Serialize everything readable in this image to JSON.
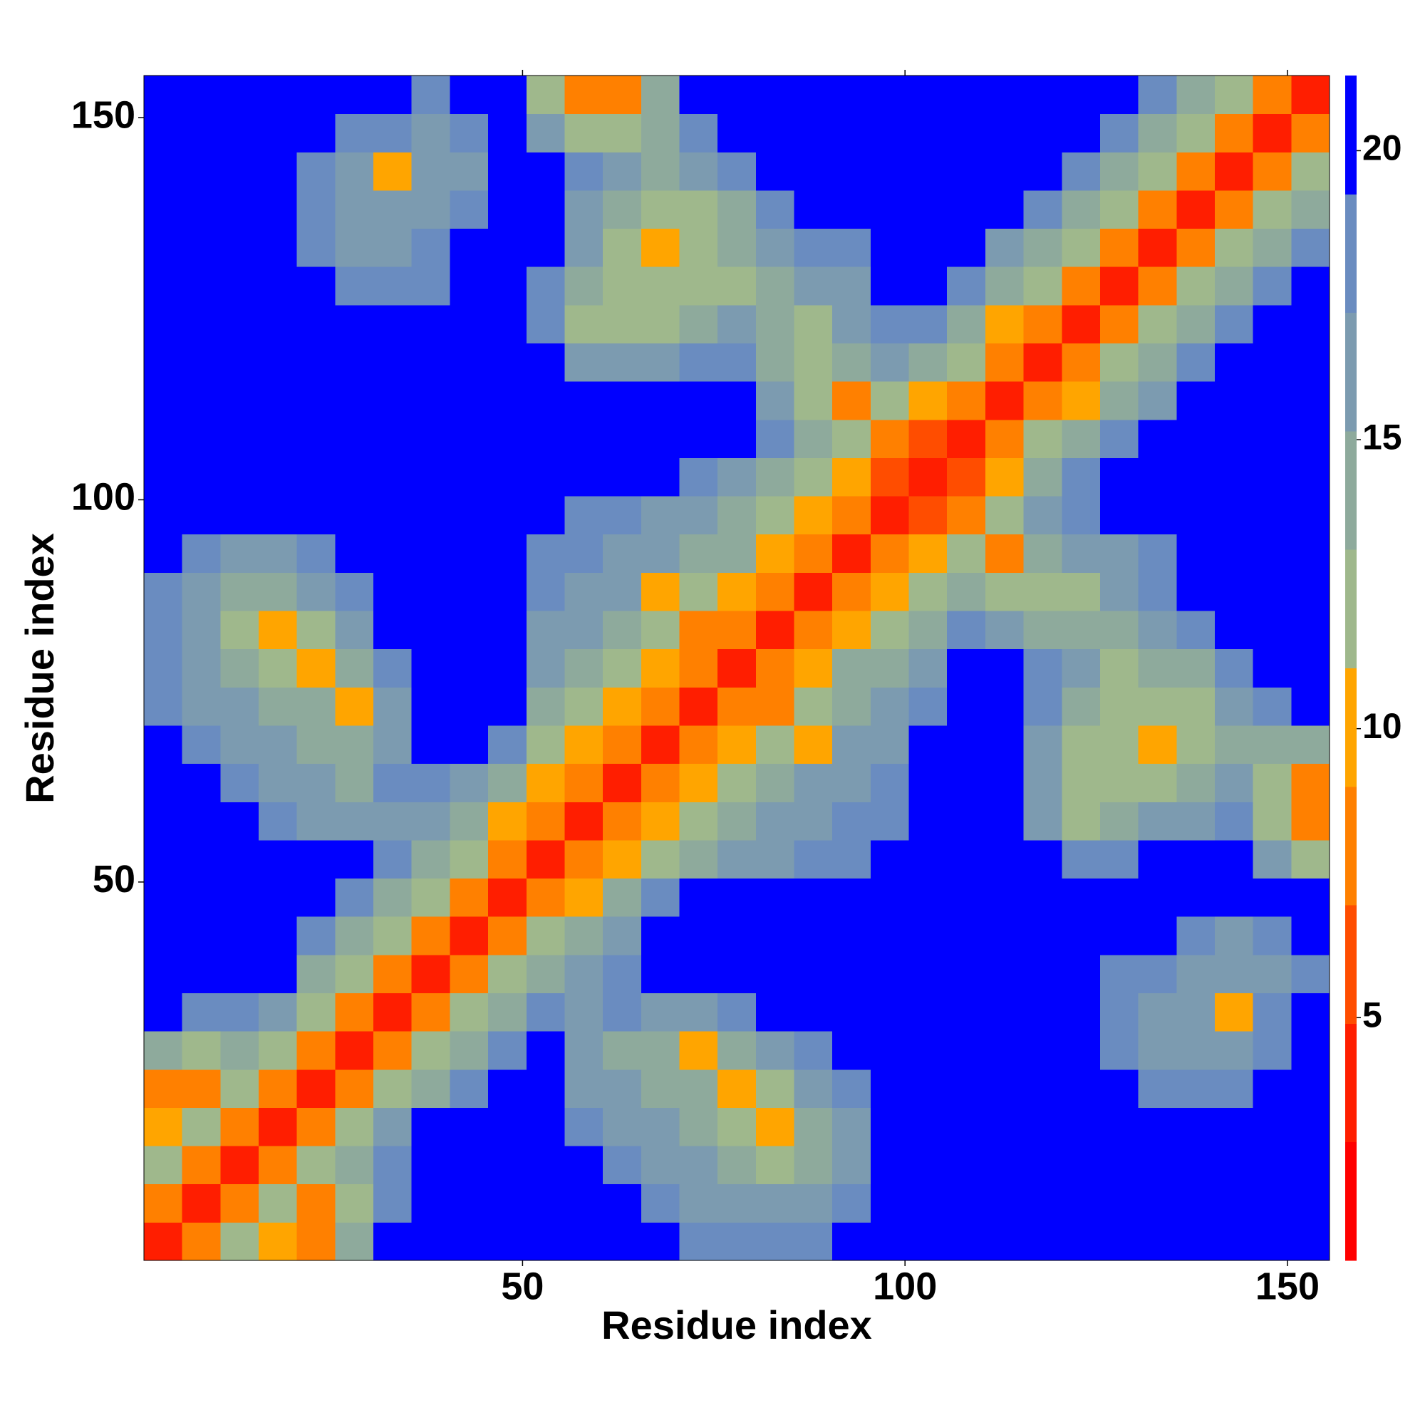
{
  "chart_data": {
    "type": "heatmap",
    "xlabel": "Residue index",
    "ylabel": "Residue index",
    "x": [
      3,
      8,
      13,
      18,
      23,
      28,
      33,
      38,
      43,
      48,
      53,
      58,
      63,
      68,
      73,
      78,
      83,
      88,
      93,
      98,
      103,
      108,
      113,
      118,
      123,
      128,
      133,
      138,
      143,
      148,
      153
    ],
    "y": [
      3,
      8,
      13,
      18,
      23,
      28,
      33,
      38,
      43,
      48,
      53,
      58,
      63,
      68,
      73,
      78,
      83,
      88,
      93,
      98,
      103,
      108,
      113,
      118,
      123,
      128,
      133,
      138,
      143,
      148,
      153
    ],
    "xlim": [
      0.5,
      155.5
    ],
    "ylim": [
      0.5,
      155.5
    ],
    "xticks": [
      50,
      100,
      150
    ],
    "yticks": [
      50,
      100,
      150
    ],
    "clim": [
      0.8,
      21.3
    ],
    "cticks": [
      5,
      10,
      15,
      20
    ],
    "colors": [
      "#ff0000",
      "#ff1e00",
      "#ff4d00",
      "#ff8000",
      "#ffa500",
      "#9fb88c",
      "#8eaa9c",
      "#7c9bb0",
      "#6a8cc0",
      "#0000ff"
    ],
    "z": [
      [
        4,
        8,
        12,
        11,
        9,
        15,
        21,
        25,
        25,
        25,
        25,
        25,
        25,
        21,
        19,
        18,
        18,
        19,
        21,
        25,
        25,
        25,
        25,
        25,
        25,
        25,
        21,
        25,
        25,
        25,
        25
      ],
      [
        8,
        4,
        8,
        12,
        7,
        13,
        18,
        25,
        25,
        25,
        25,
        25,
        22,
        19,
        17,
        16,
        16,
        17,
        19,
        25,
        25,
        25,
        25,
        25,
        25,
        25,
        21,
        21,
        25,
        25,
        25
      ],
      [
        12,
        8,
        4,
        8,
        13,
        15,
        19,
        25,
        25,
        25,
        25,
        22,
        19,
        17,
        16,
        14,
        13,
        15,
        17,
        25,
        25,
        25,
        25,
        25,
        25,
        25,
        25,
        25,
        25,
        25,
        25
      ],
      [
        11,
        12,
        8,
        4,
        8,
        12,
        16,
        21,
        25,
        25,
        25,
        19,
        17,
        16,
        15,
        12,
        10,
        14,
        17,
        21,
        25,
        25,
        25,
        25,
        25,
        25,
        25,
        25,
        25,
        25,
        25
      ],
      [
        9,
        7,
        13,
        8,
        4,
        8,
        12,
        15,
        19,
        22,
        25,
        17,
        16,
        15,
        14,
        10,
        12,
        16,
        19,
        25,
        25,
        25,
        25,
        25,
        22,
        20,
        18,
        19,
        19,
        22,
        25
      ],
      [
        15,
        13,
        15,
        12,
        8,
        4,
        8,
        12,
        15,
        18,
        21,
        17,
        15,
        14,
        11,
        14,
        16,
        18,
        22,
        25,
        25,
        25,
        25,
        23,
        20,
        18,
        17,
        17,
        17,
        19,
        25
      ],
      [
        21,
        18,
        19,
        16,
        12,
        8,
        4,
        8,
        12,
        15,
        18,
        16,
        18,
        17,
        16,
        19,
        21,
        23,
        25,
        25,
        25,
        25,
        25,
        22,
        20,
        18,
        17,
        16,
        10,
        18,
        22
      ],
      [
        25,
        25,
        25,
        21,
        15,
        12,
        8,
        4,
        8,
        12,
        15,
        17,
        18,
        20,
        22,
        25,
        25,
        25,
        25,
        25,
        25,
        25,
        25,
        23,
        21,
        19,
        18,
        17,
        16,
        17,
        19
      ],
      [
        25,
        25,
        25,
        25,
        19,
        15,
        12,
        8,
        4,
        8,
        12,
        14,
        17,
        21,
        25,
        25,
        25,
        25,
        25,
        25,
        25,
        25,
        25,
        25,
        22,
        21,
        20,
        19,
        17,
        18,
        20
      ],
      [
        25,
        25,
        25,
        25,
        22,
        18,
        15,
        12,
        8,
        4,
        8,
        11,
        15,
        19,
        23,
        25,
        25,
        25,
        25,
        25,
        25,
        25,
        25,
        25,
        25,
        25,
        24,
        23,
        21,
        22,
        25
      ],
      [
        25,
        25,
        25,
        25,
        25,
        21,
        18,
        15,
        12,
        8,
        4,
        8,
        11,
        13,
        15,
        16,
        17,
        18,
        19,
        22,
        25,
        25,
        25,
        21,
        18,
        18,
        20,
        22,
        22,
        17,
        12
      ],
      [
        25,
        25,
        22,
        19,
        17,
        17,
        16,
        17,
        14,
        11,
        8,
        4,
        8,
        11,
        13,
        15,
        16,
        17,
        18,
        19,
        25,
        25,
        22,
        17,
        13,
        14,
        16,
        17,
        18,
        13,
        8
      ],
      [
        25,
        22,
        19,
        17,
        16,
        15,
        18,
        18,
        17,
        15,
        11,
        8,
        4,
        8,
        11,
        13,
        15,
        16,
        17,
        18,
        23,
        25,
        21,
        16,
        12,
        12,
        13,
        15,
        16,
        13,
        9
      ],
      [
        21,
        19,
        17,
        16,
        15,
        14,
        17,
        20,
        21,
        19,
        13,
        11,
        8,
        4,
        8,
        11,
        13,
        11,
        16,
        17,
        21,
        24,
        21,
        17,
        13,
        13,
        11,
        12,
        15,
        15,
        15
      ],
      [
        19,
        17,
        16,
        15,
        14,
        11,
        16,
        22,
        25,
        23,
        15,
        13,
        11,
        8,
        4,
        8,
        9,
        13,
        14,
        16,
        19,
        24,
        22,
        18,
        14,
        12,
        12,
        13,
        16,
        18,
        20
      ],
      [
        18,
        16,
        14,
        12,
        10,
        14,
        19,
        25,
        25,
        25,
        16,
        15,
        13,
        11,
        8,
        4,
        8,
        11,
        14,
        15,
        17,
        23,
        22,
        19,
        16,
        13,
        14,
        15,
        18,
        22,
        25
      ],
      [
        18,
        16,
        13,
        10,
        12,
        16,
        21,
        25,
        25,
        25,
        17,
        16,
        15,
        13,
        9,
        8,
        4,
        8,
        10,
        13,
        15,
        19,
        16,
        15,
        14,
        15,
        16,
        18,
        21,
        24,
        25
      ],
      [
        19,
        17,
        15,
        14,
        16,
        18,
        23,
        25,
        25,
        25,
        18,
        17,
        16,
        11,
        13,
        11,
        8,
        4,
        8,
        11,
        13,
        15,
        12,
        13,
        13,
        16,
        18,
        20,
        22,
        25,
        25
      ],
      [
        21,
        19,
        17,
        17,
        19,
        22,
        25,
        25,
        25,
        25,
        19,
        18,
        17,
        16,
        14,
        14,
        10,
        8,
        4,
        8,
        11,
        12,
        9,
        14,
        16,
        17,
        19,
        22,
        25,
        25,
        25
      ],
      [
        25,
        25,
        25,
        21,
        25,
        25,
        25,
        25,
        25,
        25,
        22,
        19,
        18,
        17,
        16,
        15,
        13,
        11,
        8,
        4,
        6,
        7,
        12,
        16,
        18,
        20,
        22,
        25,
        25,
        25,
        25
      ],
      [
        25,
        25,
        25,
        25,
        25,
        25,
        25,
        25,
        25,
        25,
        25,
        25,
        23,
        21,
        19,
        17,
        15,
        13,
        11,
        6,
        4,
        6,
        11,
        15,
        18,
        21,
        25,
        25,
        25,
        25,
        25
      ],
      [
        25,
        25,
        25,
        25,
        25,
        25,
        25,
        25,
        25,
        25,
        25,
        25,
        25,
        24,
        24,
        23,
        19,
        15,
        12,
        7,
        6,
        4,
        8,
        12,
        15,
        18,
        21,
        25,
        25,
        25,
        25
      ],
      [
        25,
        25,
        25,
        25,
        25,
        25,
        25,
        25,
        25,
        25,
        25,
        22,
        21,
        21,
        22,
        22,
        16,
        12,
        9,
        12,
        11,
        8,
        4,
        8,
        11,
        14,
        17,
        21,
        25,
        25,
        25
      ],
      [
        25,
        25,
        25,
        25,
        25,
        23,
        22,
        23,
        25,
        25,
        21,
        17,
        16,
        17,
        18,
        19,
        15,
        13,
        14,
        16,
        15,
        12,
        8,
        4,
        8,
        12,
        15,
        18,
        21,
        25,
        25
      ],
      [
        25,
        25,
        25,
        25,
        22,
        20,
        20,
        21,
        22,
        25,
        18,
        13,
        12,
        13,
        14,
        16,
        14,
        13,
        16,
        18,
        18,
        15,
        11,
        8,
        4,
        8,
        12,
        15,
        18,
        21,
        25
      ],
      [
        25,
        25,
        25,
        25,
        20,
        18,
        18,
        19,
        21,
        25,
        18,
        14,
        12,
        13,
        12,
        13,
        15,
        16,
        17,
        20,
        21,
        18,
        14,
        12,
        8,
        4,
        8,
        12,
        15,
        18,
        21
      ],
      [
        21,
        21,
        25,
        25,
        18,
        17,
        17,
        18,
        20,
        24,
        20,
        16,
        13,
        11,
        12,
        14,
        16,
        18,
        19,
        22,
        25,
        21,
        17,
        15,
        12,
        8,
        4,
        8,
        12,
        15,
        18
      ],
      [
        25,
        21,
        25,
        25,
        19,
        17,
        16,
        17,
        19,
        23,
        22,
        17,
        15,
        12,
        13,
        15,
        18,
        20,
        22,
        25,
        25,
        25,
        21,
        18,
        15,
        12,
        8,
        4,
        8,
        12,
        15
      ],
      [
        25,
        25,
        25,
        25,
        19,
        17,
        10,
        16,
        17,
        21,
        22,
        18,
        16,
        15,
        16,
        18,
        21,
        22,
        25,
        25,
        25,
        25,
        25,
        21,
        18,
        15,
        12,
        8,
        4,
        8,
        12
      ],
      [
        25,
        25,
        25,
        25,
        22,
        19,
        18,
        17,
        18,
        22,
        17,
        13,
        13,
        15,
        18,
        22,
        24,
        25,
        25,
        25,
        25,
        25,
        25,
        25,
        21,
        18,
        15,
        12,
        8,
        4,
        8
      ],
      [
        25,
        25,
        25,
        25,
        25,
        25,
        22,
        19,
        20,
        25,
        12,
        8,
        9,
        15,
        20,
        25,
        25,
        25,
        25,
        25,
        25,
        25,
        25,
        25,
        25,
        21,
        18,
        15,
        12,
        8,
        4
      ]
    ]
  }
}
